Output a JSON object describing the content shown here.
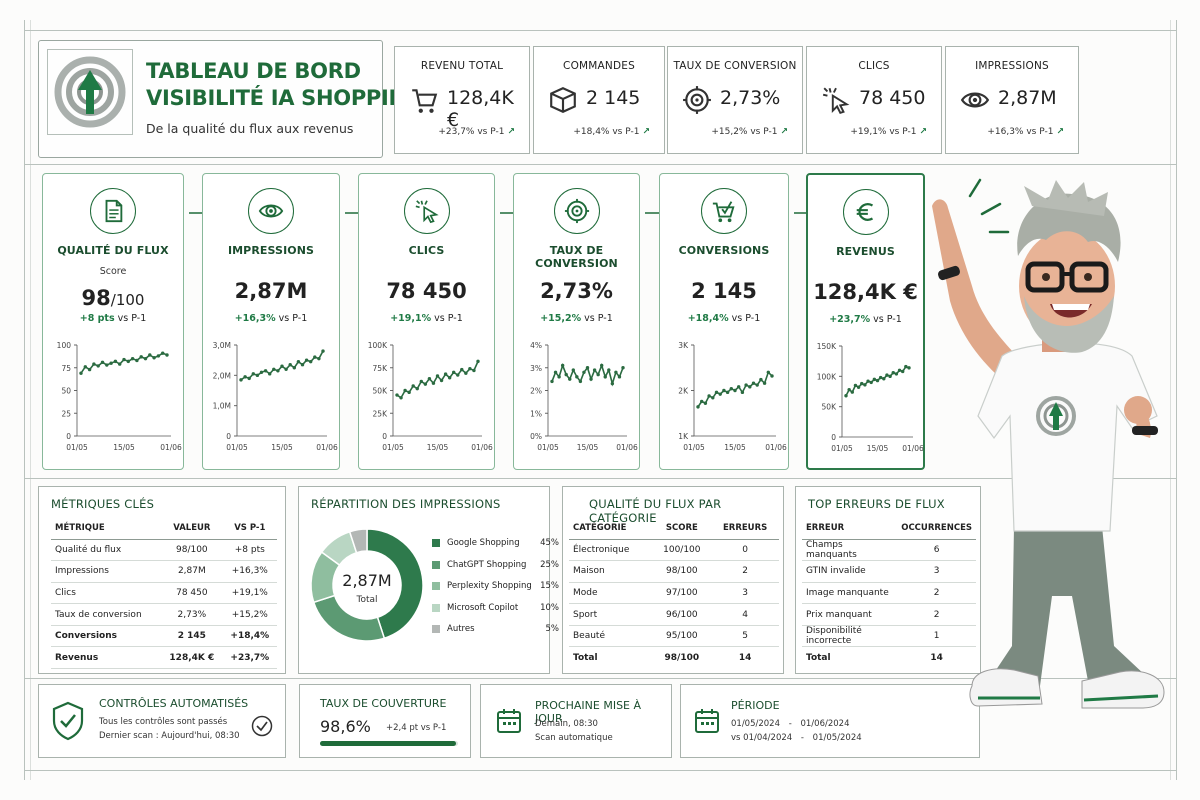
{
  "header": {
    "title_line1": "TABLEAU DE BORD",
    "title_line2": "VISIBILITÉ IA SHOPPING",
    "subtitle": "De la qualité du flux aux revenus"
  },
  "kpis": [
    {
      "label": "REVENU TOTAL",
      "value": "128,4K €",
      "delta": "+23,7%",
      "vs": "vs P-1",
      "icon": "cart-icon"
    },
    {
      "label": "COMMANDES",
      "value": "2 145",
      "delta": "+18,4%",
      "vs": "vs P-1",
      "icon": "box-icon"
    },
    {
      "label": "TAUX DE CONVERSION",
      "value": "2,73%",
      "delta": "+15,2%",
      "vs": "vs P-1",
      "icon": "target-icon"
    },
    {
      "label": "CLICS",
      "value": "78 450",
      "delta": "+19,1%",
      "vs": "vs P-1",
      "icon": "cursor-click-icon"
    },
    {
      "label": "IMPRESSIONS",
      "value": "2,87M",
      "delta": "+16,3%",
      "vs": "vs P-1",
      "icon": "eye-icon"
    }
  ],
  "funnel": [
    {
      "title": "QUALITÉ DU FLUX",
      "score_label": "Score",
      "value": "98",
      "unit": "/100",
      "delta": "+8 pts",
      "vs": "vs P-1",
      "icon": "document-icon"
    },
    {
      "title": "IMPRESSIONS",
      "value": "2,87M",
      "delta": "+16,3%",
      "vs": "vs P-1",
      "icon": "eye-icon"
    },
    {
      "title": "CLICS",
      "value": "78 450",
      "delta": "+19,1%",
      "vs": "vs P-1",
      "icon": "cursor-click-icon"
    },
    {
      "title": "TAUX DE CONVERSION",
      "value": "2,73%",
      "delta": "+15,2%",
      "vs": "vs P-1",
      "icon": "target-icon"
    },
    {
      "title": "CONVERSIONS",
      "value": "2 145",
      "delta": "+18,4%",
      "vs": "vs P-1",
      "icon": "cart-check-icon"
    },
    {
      "title": "REVENUS",
      "value": "128,4K €",
      "delta": "+23,7%",
      "vs": "vs P-1",
      "icon": "euro-icon"
    }
  ],
  "chart_data": [
    {
      "type": "line",
      "x_labels": [
        "01/05",
        "15/05",
        "01/06"
      ],
      "yticks": [
        "100",
        "75",
        "50",
        "25",
        "0"
      ],
      "ylim": [
        0,
        100
      ],
      "values": [
        69,
        76,
        73,
        79,
        77,
        81,
        78,
        80,
        82,
        79,
        84,
        82,
        85,
        83,
        87,
        85,
        89,
        86,
        88,
        91,
        89
      ]
    },
    {
      "type": "line",
      "x_labels": [
        "01/05",
        "15/05",
        "01/06"
      ],
      "yticks": [
        "3,0M",
        "2,0M",
        "1,0M",
        "0"
      ],
      "ylim": [
        0,
        3
      ],
      "values": [
        1.85,
        1.95,
        1.9,
        2.05,
        2.0,
        2.1,
        2.15,
        2.05,
        2.2,
        2.15,
        2.3,
        2.2,
        2.35,
        2.25,
        2.45,
        2.35,
        2.5,
        2.45,
        2.6,
        2.55,
        2.8
      ]
    },
    {
      "type": "line",
      "x_labels": [
        "01/05",
        "15/05",
        "01/06"
      ],
      "yticks": [
        "100K",
        "75K",
        "50K",
        "25K",
        "0"
      ],
      "ylim": [
        0,
        100
      ],
      "values": [
        45,
        42,
        50,
        48,
        55,
        52,
        60,
        57,
        63,
        58,
        66,
        61,
        68,
        64,
        70,
        67,
        73,
        69,
        74,
        72,
        82
      ]
    },
    {
      "type": "line",
      "x_labels": [
        "01/05",
        "15/05",
        "01/06"
      ],
      "yticks": [
        "4%",
        "3%",
        "2%",
        "1%",
        "0%"
      ],
      "ylim": [
        0,
        4
      ],
      "values": [
        2.4,
        2.8,
        2.6,
        3.1,
        2.7,
        2.5,
        2.9,
        2.6,
        2.4,
        2.8,
        3.0,
        2.5,
        2.9,
        2.7,
        3.1,
        2.6,
        2.9,
        2.3,
        2.8,
        2.6,
        3.0
      ]
    },
    {
      "type": "line",
      "x_labels": [
        "01/05",
        "15/05",
        "01/06"
      ],
      "yticks": [
        "3K",
        "2K",
        "1K"
      ],
      "ylim": [
        0.5,
        3
      ],
      "values": [
        1.3,
        1.45,
        1.4,
        1.6,
        1.55,
        1.7,
        1.65,
        1.75,
        1.7,
        1.8,
        1.75,
        1.85,
        1.7,
        1.9,
        1.85,
        1.95,
        1.9,
        2.05,
        1.95,
        2.25,
        2.15
      ]
    },
    {
      "type": "line",
      "x_labels": [
        "01/05",
        "15/05",
        "01/06"
      ],
      "yticks": [
        "150K",
        "100K",
        "50K",
        "0"
      ],
      "ylim": [
        0,
        150
      ],
      "values": [
        68,
        78,
        74,
        85,
        82,
        88,
        86,
        92,
        90,
        95,
        93,
        98,
        96,
        102,
        100,
        106,
        104,
        110,
        108,
        116,
        114
      ]
    }
  ],
  "metrics": {
    "title": "MÉTRIQUES CLÉS",
    "headers": [
      "MÉTRIQUE",
      "VALEUR",
      "VS P-1"
    ],
    "rows": [
      [
        "Qualité du flux",
        "98/100",
        "+8 pts"
      ],
      [
        "Impressions",
        "2,87M",
        "+16,3%"
      ],
      [
        "Clics",
        "78 450",
        "+19,1%"
      ],
      [
        "Taux de conversion",
        "2,73%",
        "+15,2%"
      ],
      [
        "Conversions",
        "2 145",
        "+18,4%"
      ],
      [
        "Revenus",
        "128,4K €",
        "+23,7%"
      ]
    ]
  },
  "distribution": {
    "title": "RÉPARTITION DES IMPRESSIONS",
    "center_value": "2,87M",
    "center_label": "Total",
    "slices": [
      {
        "name": "Google Shopping",
        "pct": "45%",
        "value": 45,
        "color": "#2e7a4c"
      },
      {
        "name": "ChatGPT Shopping",
        "pct": "25%",
        "value": 25,
        "color": "#5c9a73"
      },
      {
        "name": "Perplexity Shopping",
        "pct": "15%",
        "value": 15,
        "color": "#8fbe9f"
      },
      {
        "name": "Microsoft Copilot",
        "pct": "10%",
        "value": 10,
        "color": "#b9d6c3"
      },
      {
        "name": "Autres",
        "pct": "5%",
        "value": 5,
        "color": "#b3b7b5"
      }
    ]
  },
  "quality": {
    "title": "QUALITÉ DU FLUX PAR CATÉGORIE",
    "headers": [
      "CATÉGORIE",
      "SCORE",
      "ERREURS"
    ],
    "rows": [
      [
        "Électronique",
        "100/100",
        "0"
      ],
      [
        "Maison",
        "98/100",
        "2"
      ],
      [
        "Mode",
        "97/100",
        "3"
      ],
      [
        "Sport",
        "96/100",
        "4"
      ],
      [
        "Beauté",
        "95/100",
        "5"
      ]
    ],
    "total": [
      "Total",
      "98/100",
      "14"
    ]
  },
  "errors": {
    "title": "TOP ERREURS DE FLUX",
    "headers": [
      "ERREUR",
      "OCCURRENCES"
    ],
    "rows": [
      [
        "Champs manquants",
        "6"
      ],
      [
        "GTIN invalide",
        "3"
      ],
      [
        "Image manquante",
        "2"
      ],
      [
        "Prix manquant",
        "2"
      ],
      [
        "Disponibilité incorrecte",
        "1"
      ]
    ],
    "total": [
      "Total",
      "14"
    ]
  },
  "controls": {
    "title": "CONTRÔLES AUTOMATISÉS",
    "line1": "Tous les contrôles sont passés",
    "line2": "Dernier scan : Aujourd'hui, 08:30"
  },
  "coverage": {
    "title": "TAUX DE COUVERTURE",
    "value": "98,6%",
    "delta": "+2,4 pt vs P-1",
    "progress": 0.986
  },
  "next_update": {
    "title": "PROCHAINE MISE À JOUR",
    "line1": "Demain, 08:30",
    "line2": "Scan automatique"
  },
  "period": {
    "title": "PÉRIODE",
    "from": "01/05/2024",
    "to": "01/06/2024",
    "sep": "-",
    "cmp_prefix": "vs",
    "cmp_from": "01/04/2024",
    "cmp_to": "01/05/2024"
  },
  "colors": {
    "accent": "#1f6b3a",
    "card_border": "#88b89a",
    "line": "#2b6b41"
  }
}
